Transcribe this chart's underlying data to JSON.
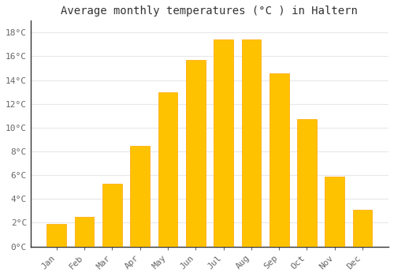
{
  "months": [
    "Jan",
    "Feb",
    "Mar",
    "Apr",
    "May",
    "Jun",
    "Jul",
    "Aug",
    "Sep",
    "Oct",
    "Nov",
    "Dec"
  ],
  "temperatures": [
    1.9,
    2.5,
    5.3,
    8.5,
    13.0,
    15.7,
    17.4,
    17.4,
    14.6,
    10.7,
    5.9,
    3.1
  ],
  "bar_color_main": "#FFC200",
  "bar_color_edge": "#FFA500",
  "title": "Average monthly temperatures (°C ) in Haltern",
  "ylabel_ticks": [
    "0°C",
    "2°C",
    "4°C",
    "6°C",
    "8°C",
    "10°C",
    "12°C",
    "14°C",
    "16°C",
    "18°C"
  ],
  "ytick_values": [
    0,
    2,
    4,
    6,
    8,
    10,
    12,
    14,
    16,
    18
  ],
  "ylim": [
    0,
    19
  ],
  "background_color": "#ffffff",
  "grid_color": "#e8e8e8",
  "title_fontsize": 10,
  "tick_fontsize": 8,
  "font_family": "monospace",
  "bar_width": 0.7,
  "left_spine_color": "#333333"
}
